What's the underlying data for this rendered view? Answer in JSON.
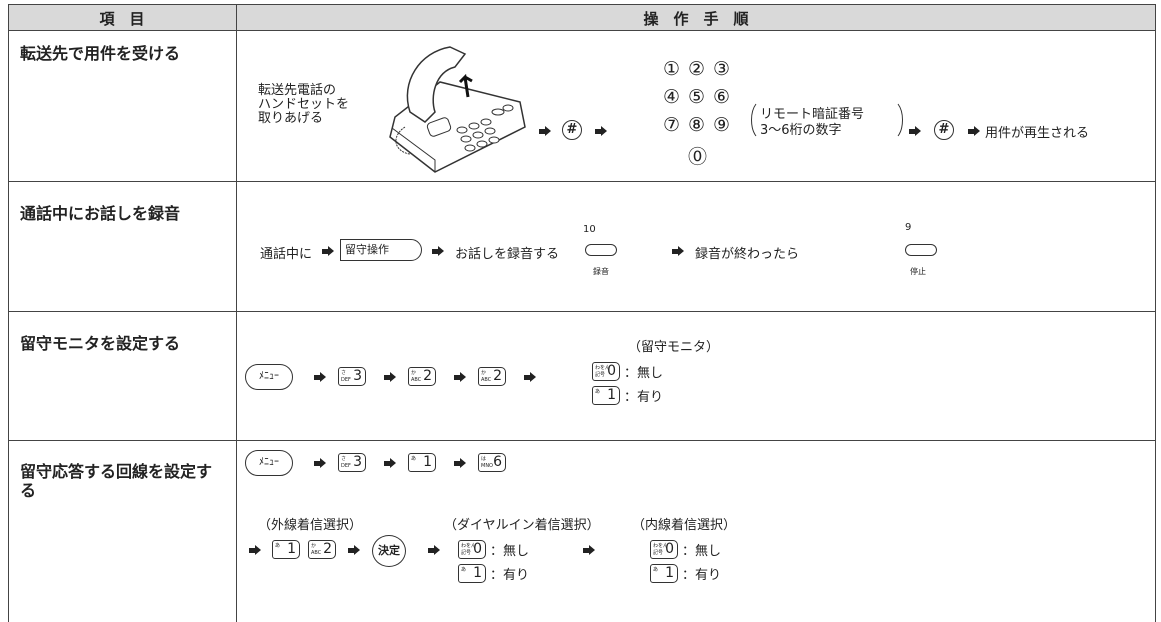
{
  "header": {
    "item": "項　目",
    "procedure": "操　作　手　順"
  },
  "rows": [
    {
      "label": "転送先で用件を受ける",
      "caption": [
        "転送先電話の",
        "ハンドセットを",
        "取りあげる"
      ],
      "hash": "#",
      "digits": [
        "①",
        "②",
        "③",
        "④",
        "⑤",
        "⑥",
        "⑦",
        "⑧",
        "⑨",
        "⓪"
      ],
      "note": [
        "リモート暗証番号",
        "3〜6桁の数字"
      ],
      "result": "用件が再生される"
    },
    {
      "label": "通話中にお話しを録音",
      "start": "通話中に",
      "key": "留守操作",
      "action": "お話しを録音する",
      "rec_num": "10",
      "rec_label": "録音",
      "after": "録音が終わったら",
      "stop_num": "9",
      "stop_label": "停止"
    },
    {
      "label": "留守モニタを設定する",
      "menu": "ﾒﾆｭｰ",
      "keys": [
        {
          "kana": "さ",
          "sub": "DEF",
          "main": "3"
        },
        {
          "kana": "か",
          "sub": "ABC",
          "main": "2"
        },
        {
          "kana": "か",
          "sub": "ABC",
          "main": "2"
        }
      ],
      "option_title": "（留守モニタ）",
      "options": [
        {
          "key": {
            "kana": "わをん",
            "sub": "記号",
            "main": "0"
          },
          "text": "：無し"
        },
        {
          "key": {
            "kana": "あ",
            "main": "1"
          },
          "text": "：有り"
        }
      ]
    },
    {
      "label": "留守応答する回線を設定する",
      "menu": "ﾒﾆｭｰ",
      "keys": [
        {
          "kana": "さ",
          "sub": "DEF",
          "main": "3"
        },
        {
          "kana": "あ",
          "main": "1"
        },
        {
          "kana": "は",
          "sub": "MNO",
          "main": "6"
        }
      ],
      "outer_title": "（外線着信選択）",
      "outer_keys": [
        {
          "kana": "あ",
          "main": "1"
        },
        {
          "kana": "か",
          "sub": "ABC",
          "main": "2"
        }
      ],
      "enter": "決定",
      "dialin_title": "（ダイヤルイン着信選択）",
      "dialin_options": [
        {
          "key": {
            "kana": "わをん",
            "sub": "記号",
            "main": "0"
          },
          "text": "：無し"
        },
        {
          "key": {
            "kana": "あ",
            "main": "1"
          },
          "text": "：有り"
        }
      ],
      "inner_title": "（内線着信選択）",
      "inner_options": [
        {
          "key": {
            "kana": "わをん",
            "sub": "記号",
            "main": "0"
          },
          "text": "：無し"
        },
        {
          "key": {
            "kana": "あ",
            "main": "1"
          },
          "text": "：有り"
        }
      ]
    }
  ]
}
